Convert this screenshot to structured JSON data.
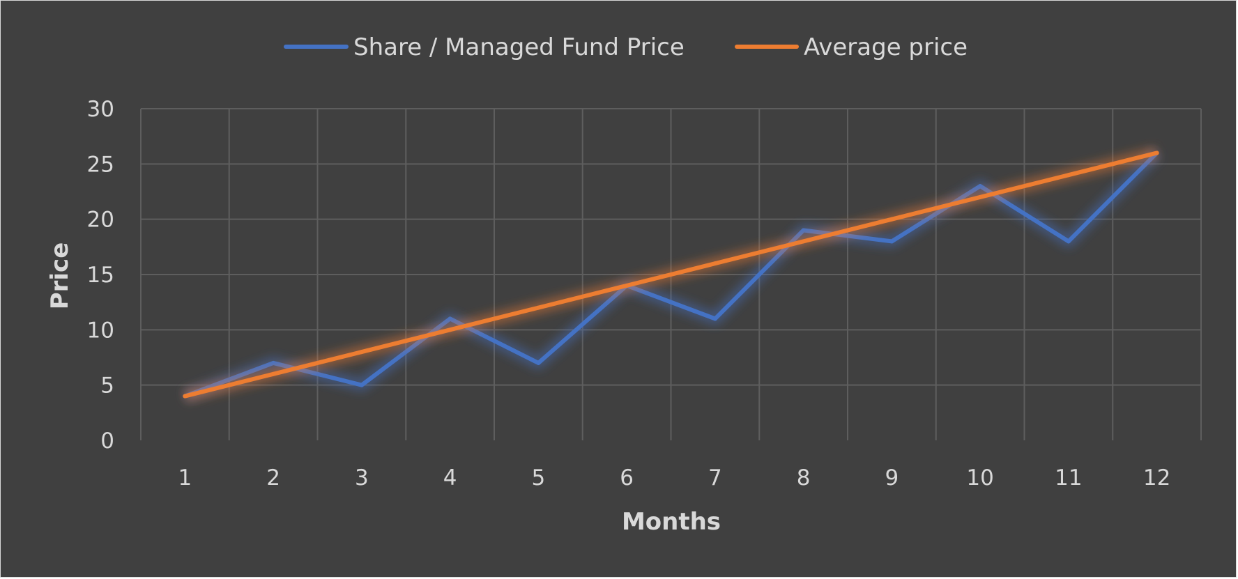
{
  "chart_data": {
    "type": "line",
    "title": "",
    "xlabel": "Months",
    "ylabel": "Price",
    "x": [
      "1",
      "2",
      "3",
      "4",
      "5",
      "6",
      "7",
      "8",
      "9",
      "10",
      "11",
      "12"
    ],
    "yticks": [
      "0",
      "5",
      "10",
      "15",
      "20",
      "25",
      "30"
    ],
    "ylim": [
      0,
      30
    ],
    "grid": true,
    "legend_position": "top-center",
    "series": [
      {
        "name": "Share / Managed Fund Price",
        "color": "#4472c4",
        "values": [
          4,
          7,
          5,
          11,
          7,
          14,
          11,
          19,
          18,
          23,
          18,
          26
        ]
      },
      {
        "name": "Average price",
        "color": "#ed7d31",
        "values": [
          4,
          6,
          8,
          10,
          12,
          14,
          16,
          18,
          20,
          22,
          24,
          26
        ]
      }
    ]
  }
}
